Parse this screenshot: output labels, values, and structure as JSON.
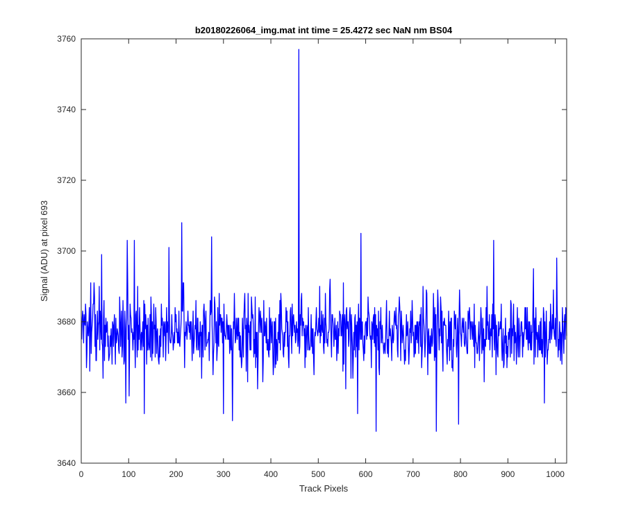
{
  "chart_data": {
    "type": "line",
    "title": "b20180226064_img.mat int time = 25.4272 sec  NaN nm BS04",
    "xlabel": "Track Pixels",
    "ylabel": "Signal (ADU) at pixel 693",
    "xlim": [
      0,
      1024
    ],
    "ylim": [
      3640,
      3760
    ],
    "xticks": [
      0,
      100,
      200,
      300,
      400,
      500,
      600,
      700,
      800,
      900,
      1000
    ],
    "yticks": [
      3640,
      3660,
      3680,
      3700,
      3720,
      3740,
      3760
    ],
    "grid": false,
    "line_color": "#0000ff",
    "series": [
      {
        "x_start": 1,
        "x_step": 1,
        "y_min": 3649,
        "y_max": 3757,
        "noise_center": 3677,
        "peaks": [
          {
            "x": 459,
            "y": 3757
          },
          {
            "x": 212,
            "y": 3708
          },
          {
            "x": 590,
            "y": 3705
          },
          {
            "x": 275,
            "y": 3704
          },
          {
            "x": 870,
            "y": 3703
          },
          {
            "x": 97,
            "y": 3703
          },
          {
            "x": 112,
            "y": 3703
          },
          {
            "x": 1003,
            "y": 3698
          },
          {
            "x": 43,
            "y": 3699
          },
          {
            "x": 185,
            "y": 3701
          }
        ],
        "troughs": [
          {
            "x": 622,
            "y": 3649
          },
          {
            "x": 749,
            "y": 3649
          },
          {
            "x": 796,
            "y": 3651
          },
          {
            "x": 319,
            "y": 3652
          },
          {
            "x": 133,
            "y": 3654
          },
          {
            "x": 300,
            "y": 3654
          },
          {
            "x": 583,
            "y": 3654
          },
          {
            "x": 94,
            "y": 3657
          },
          {
            "x": 977,
            "y": 3657
          }
        ]
      }
    ]
  }
}
